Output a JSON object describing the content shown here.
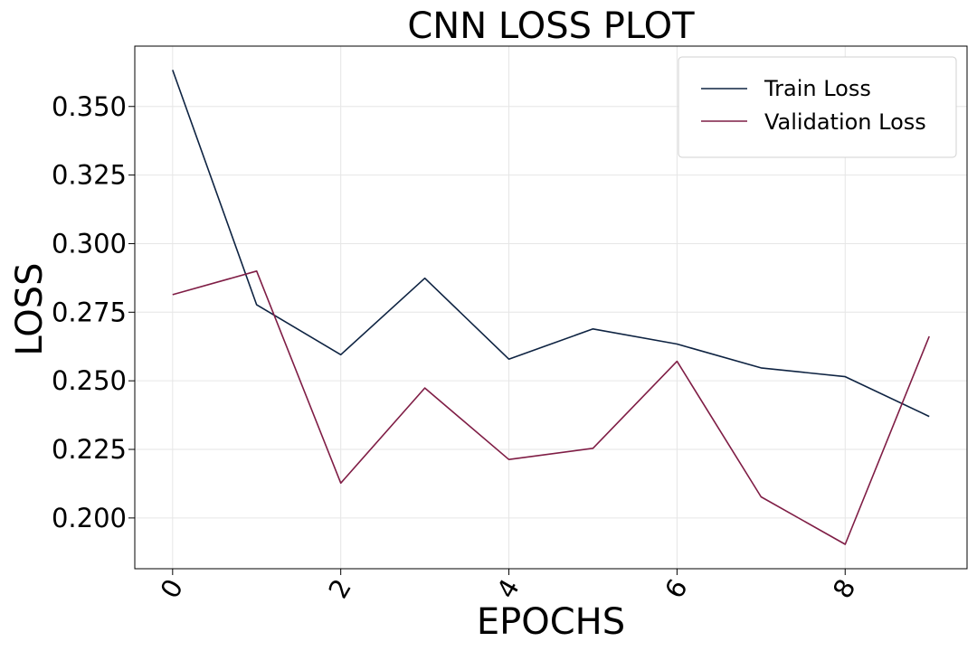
{
  "chart_data": {
    "type": "line",
    "title": "CNN LOSS PLOT",
    "xlabel": "EPOCHS",
    "ylabel": "LOSS",
    "x": [
      0,
      1,
      2,
      3,
      4,
      5,
      6,
      7,
      8,
      9
    ],
    "series": [
      {
        "name": "Train Loss",
        "color": "#0e2342",
        "values": [
          0.3633,
          0.2777,
          0.2595,
          0.2874,
          0.2579,
          0.2689,
          0.2634,
          0.2547,
          0.2515,
          0.237
        ]
      },
      {
        "name": "Validation Loss",
        "color": "#7f1d45",
        "values": [
          0.2814,
          0.29,
          0.2127,
          0.2474,
          0.2213,
          0.2254,
          0.2571,
          0.2077,
          0.1904,
          0.2662
        ]
      }
    ],
    "xticks": [
      0,
      2,
      4,
      6,
      8
    ],
    "xtick_labels": [
      "0",
      "2",
      "4",
      "6",
      "8"
    ],
    "yticks": [
      0.2,
      0.225,
      0.25,
      0.275,
      0.3,
      0.325,
      0.35
    ],
    "ytick_labels": [
      "0.200",
      "0.225",
      "0.250",
      "0.275",
      "0.300",
      "0.325",
      "0.350"
    ],
    "xlim": [
      -0.45,
      9.45
    ],
    "ylim": [
      0.1815,
      0.372
    ],
    "grid": true,
    "legend_position": "top-right",
    "xtick_rotation": "rotated"
  }
}
